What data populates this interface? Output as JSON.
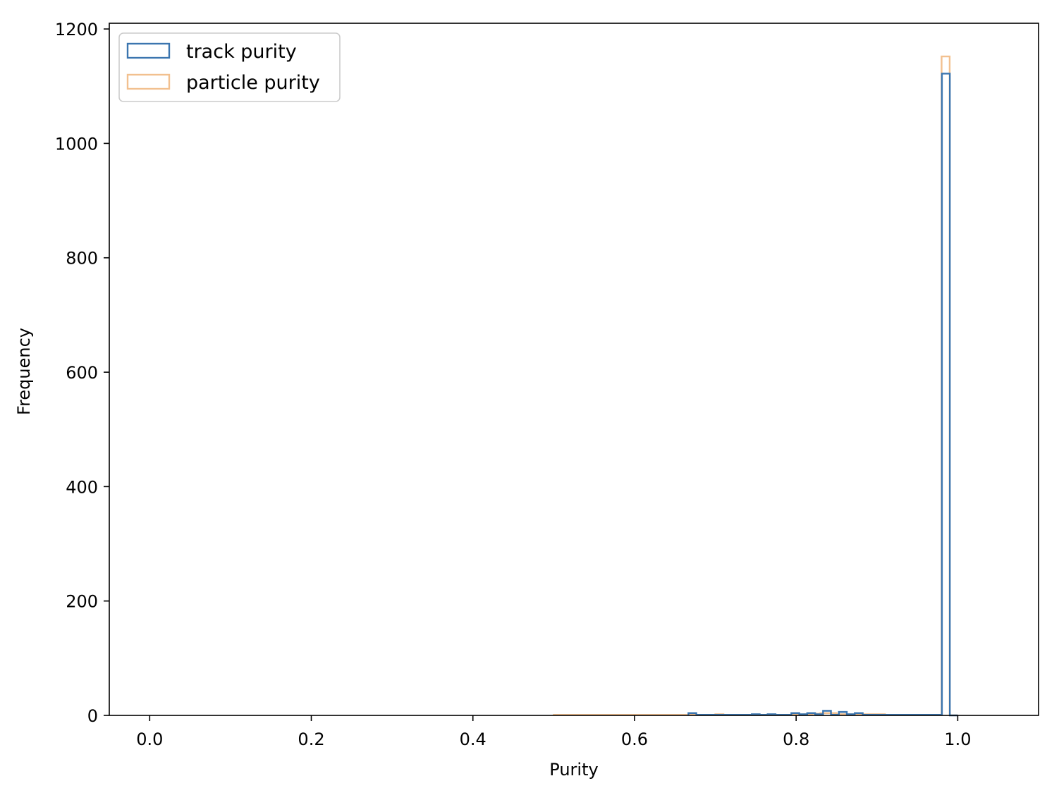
{
  "chart_data": {
    "type": "histogram",
    "title": "",
    "xlabel": "Purity",
    "ylabel": "Frequency",
    "xlim": [
      -0.05,
      1.1
    ],
    "ylim": [
      0,
      1210
    ],
    "xticks": [
      {
        "value": 0.0,
        "label": "0.0"
      },
      {
        "value": 0.2,
        "label": "0.2"
      },
      {
        "value": 0.4,
        "label": "0.4"
      },
      {
        "value": 0.6,
        "label": "0.6"
      },
      {
        "value": 0.8,
        "label": "0.8"
      },
      {
        "value": 1.0,
        "label": "1.0"
      }
    ],
    "yticks": [
      {
        "value": 0,
        "label": "0"
      },
      {
        "value": 200,
        "label": "200"
      },
      {
        "value": 400,
        "label": "400"
      },
      {
        "value": 600,
        "label": "600"
      },
      {
        "value": 800,
        "label": "800"
      },
      {
        "value": 1000,
        "label": "1000"
      },
      {
        "value": 1200,
        "label": "1200"
      }
    ],
    "grid": false,
    "legend_position": "upper-left",
    "series": [
      {
        "name": "track purity",
        "color": "#3b75af",
        "histtype": "step",
        "bin_edges": [
          0.6667,
          0.6765,
          0.6863,
          0.6961,
          0.7059,
          0.7157,
          0.7255,
          0.7353,
          0.7451,
          0.7549,
          0.7647,
          0.7745,
          0.7843,
          0.7941,
          0.8039,
          0.8137,
          0.8235,
          0.8333,
          0.8431,
          0.8529,
          0.8627,
          0.8725,
          0.8824,
          0.8922,
          0.902,
          0.9118,
          0.9216,
          0.9314,
          0.9412,
          0.951,
          0.9608,
          0.9706,
          0.9804,
          0.9902,
          1.0
        ],
        "counts": [
          4,
          1,
          1,
          1,
          1,
          1,
          1,
          1,
          2,
          1,
          2,
          1,
          1,
          4,
          2,
          4,
          2,
          8,
          1,
          6,
          2,
          4,
          1,
          1,
          1,
          1,
          1,
          1,
          1,
          1,
          1,
          1,
          1122,
          0
        ]
      },
      {
        "name": "particle purity",
        "color": "#f2c08f",
        "histtype": "step",
        "bin_edges": [
          0.5,
          0.51,
          0.52,
          0.53,
          0.54,
          0.55,
          0.56,
          0.57,
          0.58,
          0.59,
          0.6,
          0.61,
          0.62,
          0.63,
          0.64,
          0.65,
          0.66,
          0.67,
          0.68,
          0.69,
          0.7,
          0.71,
          0.72,
          0.73,
          0.74,
          0.75,
          0.76,
          0.77,
          0.78,
          0.79,
          0.8,
          0.81,
          0.82,
          0.83,
          0.84,
          0.85,
          0.86,
          0.87,
          0.88,
          0.89,
          0.9,
          0.91,
          0.92,
          0.93,
          0.94,
          0.95,
          0.96,
          0.97,
          0.98,
          0.99,
          1.0
        ],
        "counts": [
          1,
          1,
          1,
          1,
          1,
          1,
          1,
          1,
          1,
          1,
          1,
          1,
          1,
          1,
          1,
          1,
          1,
          1,
          1,
          1,
          2,
          1,
          1,
          1,
          1,
          1,
          1,
          1,
          1,
          1,
          1,
          2,
          3,
          4,
          4,
          2,
          2,
          2,
          2,
          2,
          2,
          1,
          1,
          1,
          1,
          1,
          1,
          1,
          1152,
          0
        ]
      }
    ]
  }
}
